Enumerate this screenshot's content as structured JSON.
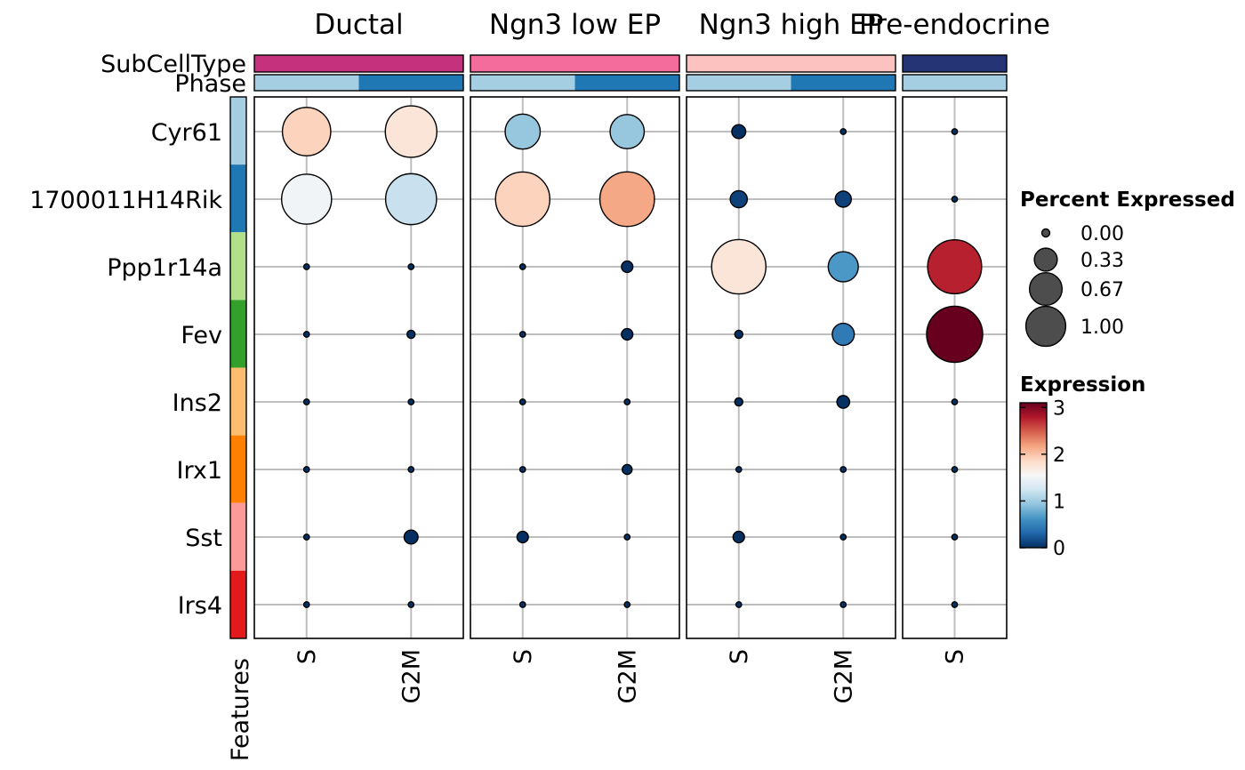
{
  "chart_data": {
    "type": "dotplot",
    "groups": [
      {
        "name": "Ductal",
        "color": "#C6317D",
        "phases": [
          "S",
          "G2M"
        ]
      },
      {
        "name": "Ngn3 low EP",
        "color": "#F46C9C",
        "phases": [
          "S",
          "G2M"
        ]
      },
      {
        "name": "Ngn3 high EP",
        "color": "#FBC2C0",
        "phases": [
          "S",
          "G2M"
        ]
      },
      {
        "name": "Pre-endocrine",
        "color": "#253474",
        "phases": [
          "S"
        ]
      }
    ],
    "annotation_labels": {
      "subcelltype": "SubCellType",
      "phase": "Phase",
      "features": "Features"
    },
    "phase_colors": {
      "S": "#A6CEE3",
      "G2M": "#1F78B4"
    },
    "features": [
      {
        "name": "Cyr61",
        "color": "#A6CEE3"
      },
      {
        "name": "1700011H14Rik",
        "color": "#1F78B4"
      },
      {
        "name": "Ppp1r14a",
        "color": "#B2DF8A"
      },
      {
        "name": "Fev",
        "color": "#33A02C"
      },
      {
        "name": "Ins2",
        "color": "#FDBF6F"
      },
      {
        "name": "Irx1",
        "color": "#FF7F00"
      },
      {
        "name": "Sst",
        "color": "#FB9A99"
      },
      {
        "name": "Irs4",
        "color": "#E31A1C"
      }
    ],
    "columns": [
      {
        "group": "Ductal",
        "phase": "S"
      },
      {
        "group": "Ductal",
        "phase": "G2M"
      },
      {
        "group": "Ngn3 low EP",
        "phase": "S"
      },
      {
        "group": "Ngn3 low EP",
        "phase": "G2M"
      },
      {
        "group": "Ngn3 high EP",
        "phase": "S"
      },
      {
        "group": "Ngn3 high EP",
        "phase": "G2M"
      },
      {
        "group": "Pre-endocrine",
        "phase": "S"
      }
    ],
    "percent_expressed": [
      [
        0.72,
        0.82,
        0.38,
        0.36,
        0.06,
        0.01,
        0.01
      ],
      [
        0.77,
        0.8,
        0.91,
        0.92,
        0.09,
        0.08,
        0.01
      ],
      [
        0.01,
        0.01,
        0.01,
        0.04,
        0.91,
        0.28,
        0.9
      ],
      [
        0.01,
        0.02,
        0.01,
        0.04,
        0.02,
        0.15,
        0.97
      ],
      [
        0.01,
        0.01,
        0.01,
        0.01,
        0.02,
        0.05,
        0.01
      ],
      [
        0.01,
        0.01,
        0.01,
        0.03,
        0.01,
        0.01,
        0.01
      ],
      [
        0.01,
        0.06,
        0.04,
        0.01,
        0.04,
        0.01,
        0.01
      ],
      [
        0.01,
        0.01,
        0.01,
        0.01,
        0.01,
        0.01,
        0.01
      ]
    ],
    "expression": [
      [
        1.9,
        1.75,
        0.95,
        0.95,
        0.0,
        0.0,
        0.0
      ],
      [
        1.5,
        1.2,
        1.9,
        2.15,
        0.1,
        0.1,
        0.0
      ],
      [
        0.0,
        0.0,
        0.0,
        0.0,
        1.75,
        0.65,
        2.75
      ],
      [
        0.0,
        0.0,
        0.0,
        0.0,
        0.0,
        0.45,
        3.1
      ],
      [
        0.0,
        0.0,
        0.0,
        0.0,
        0.0,
        0.0,
        0.0
      ],
      [
        0.0,
        0.0,
        0.0,
        0.0,
        0.0,
        0.0,
        0.0
      ],
      [
        0.0,
        0.0,
        0.0,
        0.0,
        0.0,
        0.0,
        0.0
      ],
      [
        0.0,
        0.0,
        0.0,
        0.0,
        0.0,
        0.0,
        0.0
      ]
    ],
    "size_legend": {
      "title": "Percent Expressed",
      "values": [
        0.0,
        0.33,
        0.67,
        1.0
      ],
      "labels": [
        "0.00",
        "0.33",
        "0.67",
        "1.00"
      ]
    },
    "color_legend": {
      "title": "Expression",
      "range": [
        0,
        3.1
      ],
      "ticks": [
        0,
        1,
        2,
        3
      ],
      "tick_labels": [
        "0",
        "1",
        "2",
        "3"
      ]
    },
    "color_scale": [
      "#053061",
      "#2166AC",
      "#4393C3",
      "#92C5DE",
      "#D1E5F0",
      "#F7F7F7",
      "#FDDBC7",
      "#F4A582",
      "#D6604D",
      "#B2182B",
      "#67001F"
    ],
    "grid": true,
    "legend_position": "right"
  }
}
